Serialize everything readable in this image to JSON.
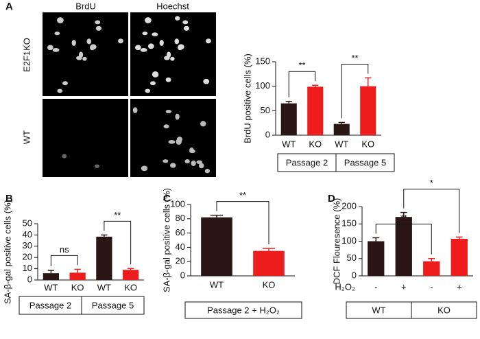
{
  "micrograph": {
    "panel_label": "A",
    "columns": [
      "BrdU",
      "Hoechst"
    ],
    "rows": [
      "E2F1KO",
      "WT"
    ]
  },
  "chart_data": [
    {
      "type": "bar",
      "ylabel": "BrdU positive cells (%)",
      "categories": [
        "WT",
        "KO",
        "WT",
        "KO"
      ],
      "values": [
        65,
        99,
        23,
        100
      ],
      "errors": [
        4,
        3,
        3,
        17
      ],
      "colors": [
        "#2a1715",
        "#ee1c1c",
        "#2a1715",
        "#ee1c1c"
      ],
      "ylim": [
        0,
        150
      ],
      "yticks": [
        0,
        50,
        100,
        150
      ],
      "groups": [
        "Passage 2",
        "Passage 5"
      ],
      "annotations": [
        {
          "label": "**",
          "between": [
            0,
            1
          ]
        },
        {
          "label": "**",
          "between": [
            2,
            3
          ]
        }
      ]
    },
    {
      "type": "bar",
      "panel_label": "B",
      "ylabel": "SA-β-gal positive cells (%)",
      "categories": [
        "WT",
        "KO",
        "WT",
        "KO"
      ],
      "values": [
        6,
        6.5,
        38.5,
        9
      ],
      "errors": [
        2.5,
        3,
        1.5,
        1.2
      ],
      "colors": [
        "#2a1715",
        "#ee1c1c",
        "#2a1715",
        "#ee1c1c"
      ],
      "ylim": [
        0,
        50
      ],
      "yticks": [
        0,
        10,
        20,
        30,
        40,
        50
      ],
      "groups": [
        "Passage 2",
        "Passage 5"
      ],
      "annotations": [
        {
          "label": "ns",
          "between": [
            0,
            1
          ]
        },
        {
          "label": "**",
          "between": [
            2,
            3
          ]
        }
      ]
    },
    {
      "type": "bar",
      "panel_label": "C",
      "ylabel": "SA-β-gal positive cells (%)",
      "categories": [
        "WT",
        "KO"
      ],
      "values": [
        82,
        35
      ],
      "errors": [
        3,
        3.5
      ],
      "colors": [
        "#2a1715",
        "#ee1c1c"
      ],
      "ylim": [
        0,
        100
      ],
      "yticks": [
        0,
        20,
        40,
        60,
        80,
        100
      ],
      "groups": [
        "Passage 2 + H₂O₂"
      ],
      "annotations": [
        {
          "label": "**",
          "between": [
            0,
            1
          ]
        }
      ]
    },
    {
      "type": "bar",
      "panel_label": "D",
      "ylabel": "DCF Flouresence (%)",
      "row_label": "H₂O₂",
      "categories": [
        "-",
        "+",
        "-",
        "+"
      ],
      "values": [
        100,
        170,
        42,
        107
      ],
      "errors": [
        10,
        13,
        8,
        5
      ],
      "colors": [
        "#2a1715",
        "#2a1715",
        "#ee1c1c",
        "#ee1c1c"
      ],
      "ylim": [
        0,
        200
      ],
      "yticks": [
        0,
        50,
        100,
        150,
        200
      ],
      "groups": [
        "WT",
        "KO"
      ],
      "annotations": [
        {
          "label": "**",
          "between": [
            0,
            2
          ]
        },
        {
          "label": "*",
          "between": [
            1,
            3
          ]
        }
      ]
    }
  ]
}
